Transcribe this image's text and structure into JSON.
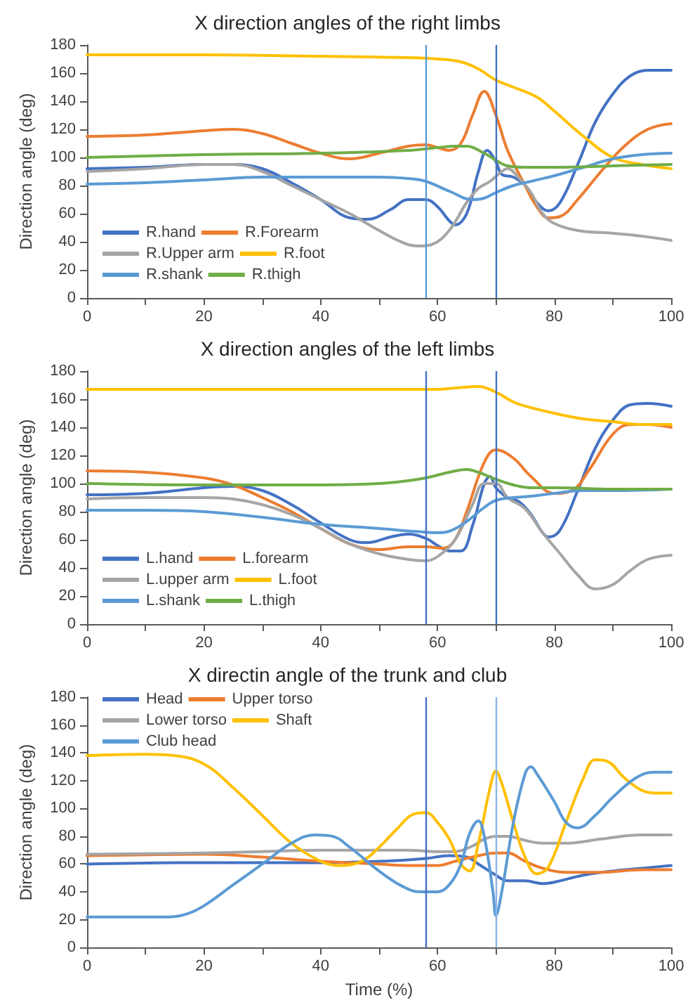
{
  "chart_data": [
    {
      "type": "line",
      "title": "X direction angles of the right limbs",
      "ylabel": "Direction angle (deg)",
      "xlim": [
        0,
        100
      ],
      "xticks": [
        0,
        {
          "value": 10,
          "label": null
        },
        20,
        {
          "value": 30,
          "label": null
        },
        40,
        {
          "value": 50,
          "label": null
        },
        60,
        {
          "value": 70,
          "label": null
        },
        80,
        {
          "value": 90,
          "label": null
        },
        100
      ],
      "ylim": [
        0,
        180
      ],
      "yticks": [
        0,
        20,
        40,
        60,
        80,
        100,
        120,
        140,
        160,
        180
      ],
      "grid": false,
      "legend": "bottom left",
      "marker": "none",
      "line_style": "solid",
      "ref_lines": [
        {
          "axis": "x",
          "value": 58,
          "color": "#5b9bd5"
        },
        {
          "axis": "x",
          "value": 70,
          "color": "#4472c4"
        }
      ],
      "series": [
        {
          "name": "R.hand",
          "color": "#4472c4",
          "x": [
            0,
            10,
            20,
            25,
            30,
            35,
            40,
            45,
            48,
            52,
            55,
            58,
            60,
            62,
            63,
            65,
            67,
            68.5,
            70,
            71,
            73,
            75,
            77,
            79,
            81,
            84,
            87,
            90,
            93,
            96,
            100
          ],
          "values": [
            92,
            93,
            95,
            95,
            92,
            82,
            70,
            57,
            56,
            63,
            70,
            70,
            65,
            55,
            52,
            60,
            90,
            105,
            97,
            88,
            86,
            80,
            68,
            62,
            68,
            95,
            125,
            145,
            158,
            162,
            162
          ]
        },
        {
          "name": "R.Forearm",
          "color": "#ed7d31",
          "x": [
            0,
            10,
            20,
            25,
            30,
            35,
            40,
            45,
            50,
            55,
            58,
            60,
            62,
            64,
            66,
            68,
            70,
            72,
            75,
            77,
            79,
            81,
            84,
            88,
            92,
            96,
            100
          ],
          "values": [
            115,
            116,
            119,
            120,
            117,
            110,
            103,
            99,
            103,
            108,
            109,
            107,
            105,
            110,
            130,
            147,
            130,
            105,
            80,
            65,
            57,
            58,
            70,
            90,
            108,
            120,
            124
          ]
        },
        {
          "name": "R.Upper arm",
          "color": "#a5a5a5",
          "x": [
            0,
            10,
            20,
            25,
            30,
            35,
            40,
            45,
            50,
            55,
            57,
            59,
            62,
            65,
            67,
            69,
            71,
            72,
            74,
            76,
            78,
            80,
            84,
            90,
            95,
            100
          ],
          "values": [
            90,
            92,
            95,
            95,
            90,
            80,
            70,
            60,
            48,
            38,
            37,
            38,
            48,
            68,
            78,
            83,
            90,
            92,
            85,
            75,
            60,
            53,
            48,
            46,
            44,
            41
          ]
        },
        {
          "name": "R.foot",
          "color": "#ffc000",
          "x": [
            0,
            20,
            40,
            55,
            60,
            64,
            67,
            70,
            73,
            77,
            80,
            85,
            90,
            95,
            100
          ],
          "values": [
            173,
            173,
            172,
            171,
            170,
            168,
            163,
            155,
            150,
            143,
            133,
            115,
            100,
            95,
            92
          ]
        },
        {
          "name": "R.shank",
          "color": "#5b9bd5",
          "x": [
            0,
            10,
            20,
            30,
            40,
            50,
            55,
            58,
            62,
            66,
            68,
            70,
            73,
            76,
            80,
            85,
            90,
            95,
            100
          ],
          "values": [
            81,
            82,
            84,
            86,
            86,
            86,
            85,
            83,
            76,
            70,
            71,
            75,
            80,
            83,
            87,
            93,
            99,
            102,
            103
          ]
        },
        {
          "name": "R.thigh",
          "color": "#70ad47",
          "x": [
            0,
            20,
            40,
            55,
            60,
            63,
            65,
            68,
            70,
            72,
            75,
            80,
            90,
            100
          ],
          "values": [
            100,
            102,
            103,
            105,
            107,
            108,
            108,
            103,
            98,
            94,
            93,
            93,
            94,
            95
          ]
        }
      ]
    },
    {
      "type": "line",
      "title": "X direction angles of the left limbs",
      "ylabel": "Direction angle (deg)",
      "xlim": [
        0,
        100
      ],
      "xticks": [
        0,
        {
          "value": 10,
          "label": null
        },
        20,
        {
          "value": 30,
          "label": null
        },
        40,
        {
          "value": 50,
          "label": null
        },
        60,
        {
          "value": 70,
          "label": null
        },
        80,
        {
          "value": 90,
          "label": null
        },
        100
      ],
      "ylim": [
        0,
        180
      ],
      "yticks": [
        0,
        20,
        40,
        60,
        80,
        100,
        120,
        140,
        160,
        180
      ],
      "grid": false,
      "legend": "bottom left",
      "marker": "none",
      "line_style": "solid",
      "ref_lines": [
        {
          "axis": "x",
          "value": 58,
          "color": "#4472c4"
        },
        {
          "axis": "x",
          "value": 70,
          "color": "#4472c4"
        }
      ],
      "series": [
        {
          "name": "L.hand",
          "color": "#4472c4",
          "x": [
            0,
            10,
            20,
            25,
            30,
            35,
            40,
            45,
            48,
            52,
            55,
            58,
            60,
            62,
            64,
            66,
            68,
            69,
            70,
            72,
            74,
            76,
            78,
            79,
            81,
            84,
            87,
            90,
            93,
            96,
            100
          ],
          "values": [
            92,
            93,
            97,
            98,
            95,
            85,
            72,
            60,
            58,
            62,
            64,
            61,
            56,
            52,
            52,
            70,
            100,
            105,
            97,
            90,
            87,
            78,
            65,
            62,
            67,
            95,
            125,
            145,
            156,
            157,
            155
          ]
        },
        {
          "name": "L.forearm",
          "color": "#ed7d31",
          "x": [
            0,
            10,
            20,
            25,
            30,
            35,
            40,
            45,
            50,
            55,
            58,
            61,
            63,
            65,
            68,
            70,
            73,
            76,
            80,
            83,
            86,
            90,
            93,
            96,
            100
          ],
          "values": [
            109,
            108,
            104,
            99,
            90,
            80,
            68,
            57,
            53,
            55,
            55,
            54,
            60,
            80,
            115,
            124,
            118,
            105,
            93,
            95,
            110,
            135,
            142,
            142,
            140
          ]
        },
        {
          "name": "L.upper arm",
          "color": "#a5a5a5",
          "x": [
            0,
            10,
            20,
            25,
            30,
            35,
            40,
            45,
            50,
            55,
            58,
            60,
            63,
            66,
            68,
            70,
            72,
            75,
            78,
            81,
            84,
            87,
            90,
            93,
            96,
            100
          ],
          "values": [
            89,
            90,
            90,
            89,
            85,
            78,
            68,
            57,
            50,
            46,
            45,
            48,
            60,
            85,
            100,
            100,
            90,
            82,
            65,
            50,
            35,
            25,
            28,
            38,
            46,
            49
          ]
        },
        {
          "name": "L.foot",
          "color": "#ffc000",
          "x": [
            0,
            20,
            40,
            55,
            60,
            63,
            67,
            70,
            73,
            76,
            80,
            85,
            90,
            95,
            100
          ],
          "values": [
            167,
            167,
            167,
            167,
            167,
            168,
            169,
            165,
            158,
            154,
            150,
            146,
            144,
            142,
            142
          ]
        },
        {
          "name": "L.shank",
          "color": "#5b9bd5",
          "x": [
            0,
            10,
            20,
            30,
            40,
            50,
            56,
            60,
            62,
            65,
            68,
            70,
            73,
            76,
            80,
            85,
            90,
            100
          ],
          "values": [
            81,
            81,
            80,
            76,
            71,
            68,
            66,
            65,
            66,
            73,
            83,
            88,
            90,
            91,
            93,
            95,
            95,
            96
          ]
        },
        {
          "name": "L.thigh",
          "color": "#70ad47",
          "x": [
            0,
            20,
            40,
            50,
            55,
            58,
            62,
            65,
            67,
            70,
            73,
            76,
            80,
            90,
            100
          ],
          "values": [
            100,
            99,
            99,
            100,
            102,
            104,
            108,
            110,
            108,
            103,
            99,
            97,
            97,
            96,
            96
          ]
        }
      ]
    },
    {
      "type": "line",
      "title": "X directin angle of the trunk and club",
      "xlabel": "Time (%)",
      "ylabel": "Direction angle (deg)",
      "xlim": [
        0,
        100
      ],
      "xticks": [
        0,
        {
          "value": 10,
          "label": null
        },
        20,
        {
          "value": 30,
          "label": null
        },
        40,
        {
          "value": 50,
          "label": null
        },
        60,
        {
          "value": 70,
          "label": null
        },
        80,
        {
          "value": 90,
          "label": null
        },
        100
      ],
      "ylim": [
        0,
        180
      ],
      "yticks": [
        0,
        20,
        40,
        60,
        80,
        100,
        120,
        140,
        160,
        180
      ],
      "grid": false,
      "legend": "top left",
      "marker": "none",
      "line_style": "solid",
      "ref_lines": [
        {
          "axis": "x",
          "value": 58,
          "color": "#4472c4"
        },
        {
          "axis": "x",
          "value": 70,
          "color": "#8eb4e3"
        }
      ],
      "series": [
        {
          "name": "Head",
          "color": "#4472c4",
          "x": [
            0,
            20,
            40,
            50,
            55,
            58,
            62,
            65,
            67,
            70,
            72,
            75,
            78,
            80,
            85,
            90,
            95,
            100
          ],
          "values": [
            60,
            61,
            61,
            62,
            63,
            64,
            66,
            65,
            60,
            52,
            48,
            48,
            46,
            47,
            52,
            55,
            57,
            59
          ]
        },
        {
          "name": "Upper torso",
          "color": "#ed7d31",
          "x": [
            0,
            20,
            30,
            40,
            50,
            55,
            60,
            63,
            66,
            70,
            72,
            75,
            78,
            82,
            88,
            95,
            100
          ],
          "values": [
            66,
            67,
            65,
            62,
            60,
            59,
            59,
            62,
            65,
            68,
            68,
            62,
            57,
            54,
            54,
            56,
            56
          ]
        },
        {
          "name": "Lower torso",
          "color": "#a5a5a5",
          "x": [
            0,
            20,
            30,
            40,
            50,
            55,
            60,
            63,
            66,
            68,
            70,
            72,
            75,
            78,
            82,
            88,
            95,
            100
          ],
          "values": [
            67,
            68,
            69,
            70,
            70,
            70,
            69,
            69,
            73,
            78,
            80,
            80,
            77,
            75,
            75,
            78,
            81,
            81
          ]
        },
        {
          "name": "Shaft",
          "color": "#ffc000",
          "x": [
            0,
            10,
            15,
            20,
            25,
            30,
            35,
            40,
            43,
            47,
            50,
            53,
            56,
            58,
            60,
            62,
            64,
            65.5,
            67,
            69,
            70,
            71,
            73,
            75,
            77,
            79,
            82,
            85,
            87,
            89,
            92,
            95,
            98,
            100
          ],
          "values": [
            138,
            139,
            138,
            132,
            115,
            95,
            75,
            62,
            59,
            62,
            72,
            85,
            96,
            97,
            90,
            78,
            60,
            55,
            75,
            115,
            127,
            118,
            90,
            65,
            53,
            58,
            90,
            122,
            135,
            134,
            122,
            113,
            111,
            111
          ]
        },
        {
          "name": "Club head",
          "color": "#5b9bd5",
          "x": [
            0,
            10,
            14,
            17,
            20,
            25,
            30,
            35,
            39,
            42,
            45,
            50,
            54,
            57,
            60,
            62,
            64,
            65.5,
            67,
            68,
            69.5,
            70,
            71,
            73,
            75,
            76,
            77,
            80,
            82,
            84,
            87,
            90,
            94,
            97,
            100
          ],
          "values": [
            22,
            22,
            22,
            24,
            30,
            45,
            60,
            75,
            81,
            80,
            72,
            55,
            44,
            40,
            40,
            45,
            60,
            82,
            91,
            80,
            40,
            23,
            40,
            90,
            125,
            130,
            125,
            105,
            90,
            86,
            95,
            108,
            122,
            126,
            126
          ]
        }
      ]
    }
  ]
}
